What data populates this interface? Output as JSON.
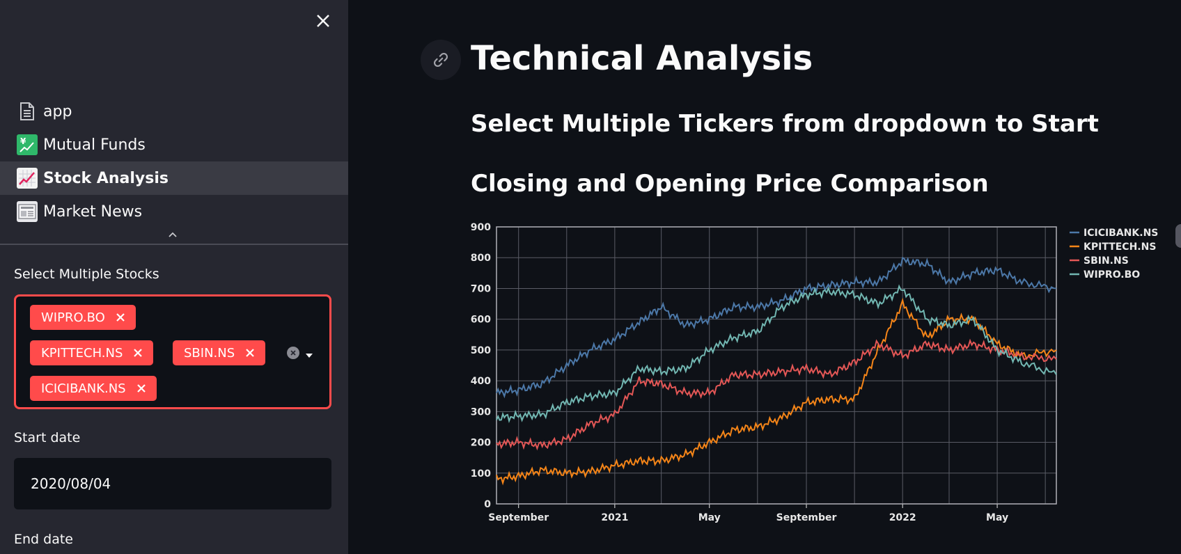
{
  "sidebar": {
    "nav_items": [
      {
        "label": "app",
        "icon": "document-icon"
      },
      {
        "label": "Mutual Funds",
        "icon": "yen-chart-icon"
      },
      {
        "label": "Stock Analysis",
        "icon": "chart-increasing-icon",
        "active": true
      },
      {
        "label": "Market News",
        "icon": "newspaper-icon"
      }
    ],
    "multiselect_label": "Select Multiple Stocks",
    "selected_tickers": [
      "WIPRO.BO",
      "KPITTECH.NS",
      "SBIN.NS",
      "ICICIBANK.NS"
    ],
    "start_date_label": "Start date",
    "start_date_value": "2020/08/04",
    "end_date_label": "End date"
  },
  "main": {
    "title": "Technical Analysis",
    "subheading_1": "Select Multiple Tickers from dropdown to Start",
    "subheading_2": "Closing and Opening Price Comparison"
  },
  "colors": {
    "accent": "#ff4b4b",
    "sidebar_bg": "#262730",
    "main_bg": "#0e1117"
  },
  "chart_data": {
    "type": "line",
    "title": "",
    "xlabel": "",
    "ylabel": "",
    "ylim": [
      0,
      900
    ],
    "y_ticks": [
      0,
      100,
      200,
      300,
      400,
      500,
      600,
      700,
      800,
      900
    ],
    "x_tick_labels": [
      "September",
      "2021",
      "May",
      "September",
      "2022",
      "May"
    ],
    "x_range": [
      "2020-08-04",
      "2022-07-15"
    ],
    "grid": true,
    "legend_position": "top-right",
    "x": [
      "2020-08-04",
      "2020-09-01",
      "2020-10-01",
      "2020-11-01",
      "2020-12-01",
      "2021-01-01",
      "2021-02-01",
      "2021-03-01",
      "2021-04-01",
      "2021-05-01",
      "2021-06-01",
      "2021-07-01",
      "2021-08-01",
      "2021-09-01",
      "2021-10-01",
      "2021-11-01",
      "2021-12-01",
      "2022-01-01",
      "2022-02-01",
      "2022-03-01",
      "2022-04-01",
      "2022-05-01",
      "2022-06-01",
      "2022-07-15"
    ],
    "series": [
      {
        "name": "ICICIBANK.NS",
        "color": "#4c78a8",
        "values": [
          360,
          370,
          390,
          450,
          500,
          535,
          590,
          640,
          580,
          600,
          640,
          640,
          660,
          700,
          710,
          720,
          720,
          790,
          780,
          720,
          750,
          760,
          720,
          700
        ]
      },
      {
        "name": "KPITTECH.NS",
        "color": "#f58518",
        "values": [
          80,
          90,
          110,
          100,
          105,
          125,
          140,
          140,
          160,
          200,
          240,
          250,
          280,
          330,
          340,
          340,
          500,
          650,
          540,
          600,
          600,
          520,
          480,
          500
        ]
      },
      {
        "name": "SBIN.NS",
        "color": "#e45756",
        "values": [
          195,
          200,
          190,
          210,
          260,
          290,
          400,
          390,
          360,
          360,
          420,
          420,
          430,
          440,
          420,
          460,
          520,
          480,
          520,
          500,
          520,
          500,
          480,
          470
        ]
      },
      {
        "name": "WIPRO.BO",
        "color": "#72b7b2",
        "values": [
          280,
          285,
          290,
          330,
          350,
          360,
          440,
          430,
          440,
          500,
          540,
          560,
          640,
          680,
          690,
          680,
          650,
          700,
          600,
          580,
          600,
          500,
          460,
          420
        ]
      }
    ]
  }
}
